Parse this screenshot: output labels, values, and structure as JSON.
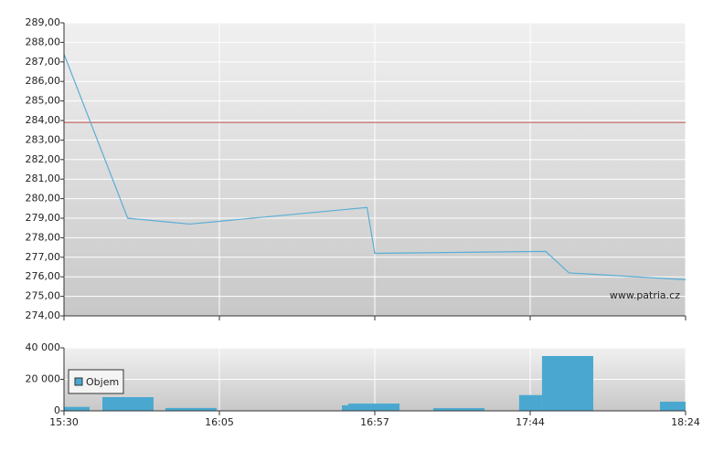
{
  "chart_data": [
    {
      "type": "line",
      "x": [
        0,
        0.41,
        0.81,
        1.95,
        2.0,
        3.1,
        3.25,
        4.0
      ],
      "series": [
        {
          "color": "#5aaed6",
          "values": [
            287.4,
            279.0,
            278.7,
            279.55,
            277.2,
            277.3,
            276.2,
            275.85
          ]
        }
      ],
      "reference_line": {
        "value": 283.9,
        "color": "#c0504d"
      },
      "annotation": "www.patria.cz",
      "xlim": [
        0,
        4
      ],
      "xticks": [
        0,
        1,
        2,
        3,
        4
      ],
      "ylim": [
        274,
        289
      ],
      "yticks": [
        {
          "value": 274,
          "label": "274,00"
        },
        {
          "value": 275,
          "label": "275,00"
        },
        {
          "value": 276,
          "label": "276,00"
        },
        {
          "value": 277,
          "label": "277,00"
        },
        {
          "value": 278,
          "label": "278,00"
        },
        {
          "value": 279,
          "label": "279,00"
        },
        {
          "value": 280,
          "label": "280,00"
        },
        {
          "value": 281,
          "label": "281,00"
        },
        {
          "value": 282,
          "label": "282,00"
        },
        {
          "value": 283,
          "label": "283,00"
        },
        {
          "value": 284,
          "label": "284,00"
        },
        {
          "value": 285,
          "label": "285,00"
        },
        {
          "value": 286,
          "label": "286,00"
        },
        {
          "value": 287,
          "label": "287,00"
        },
        {
          "value": 288,
          "label": "288,00"
        },
        {
          "value": 289,
          "label": "289,00"
        }
      ],
      "grid": true
    },
    {
      "type": "histogram",
      "series": [
        {
          "name": "Objem",
          "color": "#4aa8d0",
          "x0": [
            0,
            0.247,
            0.653,
            1.788,
            1.829,
            2.376,
            2.929,
            3.076,
            3.835
          ],
          "x1": [
            0.165,
            0.576,
            0.982,
            1.829,
            2.159,
            2.706,
            3.076,
            3.406,
            4.0
          ],
          "values": [
            2500,
            8700,
            1800,
            3500,
            4600,
            1700,
            10000,
            34800,
            5800
          ]
        }
      ],
      "xlim": [
        0,
        4
      ],
      "xticks": [
        {
          "value": 0,
          "label": "15:30"
        },
        {
          "value": 1,
          "label": "16:05"
        },
        {
          "value": 2,
          "label": "16:57"
        },
        {
          "value": 3,
          "label": "17:44"
        },
        {
          "value": 4,
          "label": "18:24"
        }
      ],
      "ylim": [
        0,
        40000
      ],
      "yticks": [
        0,
        {
          "value": 20000,
          "label": "20 000"
        },
        {
          "value": 40000,
          "label": "40 000"
        }
      ],
      "grid": true,
      "legend": "upper-left"
    }
  ]
}
